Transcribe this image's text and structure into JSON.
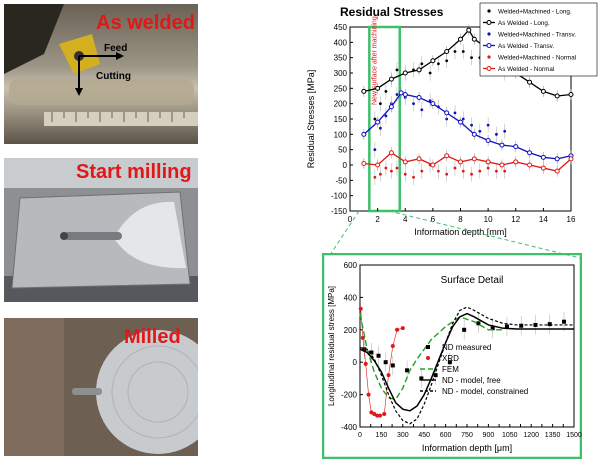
{
  "photos": [
    {
      "label": "As welded",
      "annotations": [
        "Feed",
        "Cutting"
      ]
    },
    {
      "label": "Start milling",
      "annotations": []
    },
    {
      "label": "Milled",
      "annotations": []
    }
  ],
  "chart_data": [
    {
      "type": "line",
      "title": "Residual Stresses",
      "xlabel": "Information depth [mm]",
      "ylabel": "Residual Stresses [MPa]",
      "xlim": [
        0,
        16
      ],
      "ylim": [
        -150,
        450
      ],
      "xticks": [
        0,
        2,
        4,
        6,
        8,
        10,
        12,
        14,
        16
      ],
      "yticks": [
        -150,
        -100,
        -50,
        0,
        50,
        100,
        150,
        200,
        250,
        300,
        350,
        400,
        450
      ],
      "legend_position": "top-right",
      "annotation": "New surface after machining",
      "highlight_range": [
        1.4,
        3.6
      ],
      "series": [
        {
          "name": "Welded+Machined - Long.",
          "color": "#000000",
          "style": "dots",
          "x": [
            1.8,
            2.2,
            2.6,
            3.0,
            3.4,
            4.0,
            4.6,
            5.2,
            5.8,
            6.4,
            7.0,
            7.6,
            8.2,
            8.8,
            9.4,
            10.0,
            10.6,
            11.2
          ],
          "y": [
            150,
            200,
            240,
            280,
            310,
            300,
            310,
            330,
            300,
            330,
            340,
            370,
            370,
            350,
            350,
            370,
            330,
            300
          ]
        },
        {
          "name": "As Welded - Long.",
          "color": "#000000",
          "style": "line",
          "x": [
            1.0,
            2.0,
            3.0,
            4.0,
            5.0,
            6.0,
            7.0,
            8.0,
            8.6,
            9.0,
            10.0,
            11.0,
            12.0,
            13.0,
            14.0,
            15.0,
            16.0
          ],
          "y": [
            240,
            250,
            280,
            300,
            310,
            340,
            370,
            410,
            440,
            410,
            380,
            350,
            300,
            270,
            240,
            225,
            230
          ]
        },
        {
          "name": "Welded+Machined - Transv.",
          "color": "#1010c0",
          "style": "dots",
          "x": [
            1.8,
            2.2,
            2.6,
            3.0,
            3.4,
            4.0,
            4.6,
            5.2,
            5.8,
            6.4,
            7.0,
            7.6,
            8.2,
            8.8,
            9.4,
            10.0,
            10.6,
            11.2
          ],
          "y": [
            50,
            120,
            160,
            200,
            230,
            220,
            200,
            180,
            210,
            190,
            150,
            170,
            150,
            130,
            110,
            130,
            100,
            110
          ]
        },
        {
          "name": "As Welded - Transv.",
          "color": "#1010c0",
          "style": "line",
          "x": [
            1.0,
            2.0,
            3.0,
            3.7,
            4.0,
            5.0,
            6.0,
            7.0,
            8.0,
            9.0,
            10.0,
            11.0,
            12.0,
            13.0,
            14.0,
            15.0,
            16.0
          ],
          "y": [
            100,
            140,
            190,
            235,
            230,
            220,
            200,
            170,
            140,
            100,
            80,
            65,
            60,
            40,
            25,
            20,
            30
          ]
        },
        {
          "name": "Welded+Machined - Normal",
          "color": "#e01818",
          "style": "dots",
          "x": [
            1.8,
            2.2,
            2.6,
            3.0,
            3.4,
            4.0,
            4.6,
            5.2,
            5.8,
            6.4,
            7.0,
            7.6,
            8.2,
            8.8,
            9.4,
            10.0,
            10.6,
            11.2
          ],
          "y": [
            -40,
            -30,
            -10,
            -20,
            -10,
            -30,
            -40,
            -20,
            0,
            -20,
            -30,
            -10,
            -20,
            -30,
            -20,
            -10,
            -20,
            -20
          ]
        },
        {
          "name": "As Welded - Normal",
          "color": "#e01818",
          "style": "line",
          "x": [
            1.0,
            2.0,
            3.0,
            4.0,
            5.0,
            6.0,
            7.0,
            8.0,
            9.0,
            10.0,
            11.0,
            12.0,
            13.0,
            14.0,
            15.0,
            16.0
          ],
          "y": [
            5,
            0,
            40,
            10,
            20,
            0,
            30,
            10,
            20,
            10,
            0,
            10,
            0,
            -10,
            -20,
            20
          ]
        }
      ]
    },
    {
      "type": "line",
      "title": "Surface Detail",
      "xlabel": "Information depth [μm]",
      "ylabel": "Longitudinal residual stress [MPa]",
      "xlim": [
        0,
        1500
      ],
      "ylim": [
        -400,
        600
      ],
      "xticks": [
        0,
        75,
        150,
        225,
        300,
        375,
        450,
        525,
        600,
        675,
        750,
        825,
        900,
        975,
        1050,
        1125,
        1200,
        1275,
        1350,
        1425,
        1500
      ],
      "xtick_labels": [
        "0",
        "",
        "150",
        "",
        "300",
        "",
        "450",
        "",
        "600",
        "",
        "750",
        "",
        "900",
        "",
        "1050",
        "",
        "1200",
        "",
        "1350",
        "",
        "1500"
      ],
      "yticks": [
        -400,
        -200,
        0,
        200,
        400,
        600
      ],
      "legend_position": "bottom-right",
      "series": [
        {
          "name": "ND measured",
          "color": "#000000",
          "style": "square",
          "x": [
            30,
            80,
            130,
            180,
            230,
            330,
            430,
            530,
            630,
            730,
            830,
            930,
            1030,
            1130,
            1230,
            1330,
            1430
          ],
          "y": [
            80,
            60,
            40,
            0,
            -20,
            -50,
            -100,
            -80,
            0,
            200,
            240,
            210,
            220,
            225,
            230,
            235,
            250
          ]
        },
        {
          "name": "XRD",
          "color": "#e01818",
          "style": "dots",
          "x": [
            5,
            20,
            40,
            60,
            80,
            100,
            120,
            140,
            170,
            200,
            230,
            260,
            300
          ],
          "y": [
            330,
            150,
            -10,
            -200,
            -310,
            -320,
            -330,
            -330,
            -320,
            -80,
            100,
            200,
            210
          ]
        },
        {
          "name": "FEM",
          "color": "#22a022",
          "style": "dashed",
          "x": [
            0,
            50,
            100,
            150,
            200,
            250,
            300,
            350,
            400,
            500,
            600,
            700,
            800,
            900,
            1000
          ],
          "y": [
            300,
            80,
            -60,
            -160,
            -220,
            -230,
            -160,
            -50,
            20,
            140,
            220,
            280,
            250,
            200,
            200
          ]
        },
        {
          "name": "ND - model, free",
          "color": "#000000",
          "style": "solid",
          "x": [
            0,
            50,
            100,
            150,
            200,
            250,
            300,
            350,
            400,
            450,
            500,
            550,
            600,
            650,
            700,
            750,
            800,
            900,
            1000,
            1100,
            1200,
            1300,
            1500
          ],
          "y": [
            80,
            60,
            10,
            -60,
            -160,
            -250,
            -290,
            -300,
            -270,
            -200,
            -100,
            10,
            120,
            220,
            280,
            300,
            280,
            230,
            210,
            205,
            205,
            205,
            205
          ]
        },
        {
          "name": "ND - model, constrained",
          "color": "#000000",
          "style": "dotted",
          "x": [
            0,
            50,
            100,
            150,
            200,
            250,
            300,
            350,
            400,
            450,
            500,
            550,
            600,
            650,
            700,
            750,
            800,
            900,
            1000,
            1100,
            1200,
            1300,
            1500
          ],
          "y": [
            90,
            80,
            20,
            -80,
            -200,
            -300,
            -360,
            -380,
            -350,
            -260,
            -140,
            -10,
            120,
            240,
            320,
            340,
            320,
            270,
            240,
            230,
            230,
            230,
            230
          ]
        }
      ]
    }
  ]
}
